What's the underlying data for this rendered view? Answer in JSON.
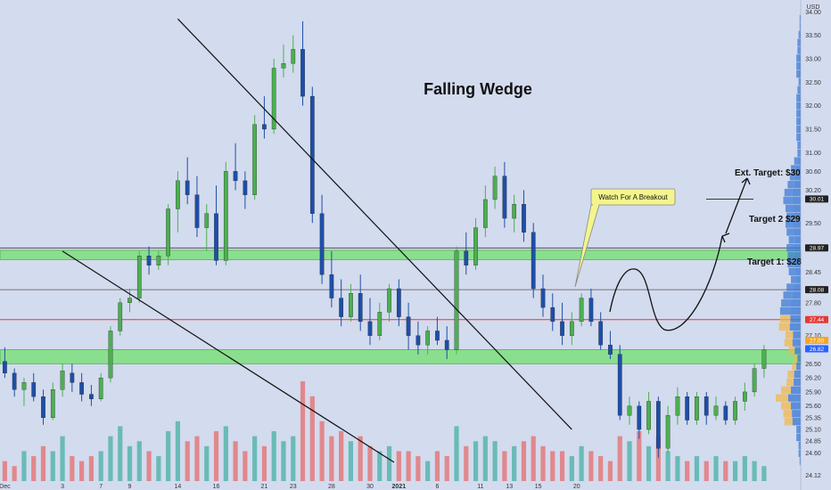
{
  "chart_data": {
    "type": "candlestick",
    "title": "Falling Wedge",
    "currency": "USD",
    "ylim": [
      24.0,
      34.1
    ],
    "y_ticks": [
      "24.12",
      "24.60",
      "24.85",
      "25.10",
      "25.35",
      "25.60",
      "25.90",
      "26.20",
      "26.50",
      "26.80",
      "27.10",
      "27.44",
      "27.80",
      "28.08",
      "28.45",
      "28.97",
      "29.50",
      "30.01",
      "30.20",
      "30.60",
      "31.00",
      "31.50",
      "32.00",
      "32.50",
      "33.00",
      "33.50",
      "34.00"
    ],
    "x_ticks": [
      "Dec",
      "3",
      "7",
      "9",
      "14",
      "16",
      "21",
      "23",
      "28",
      "30",
      "2021",
      "6",
      "11",
      "13",
      "15",
      "20"
    ],
    "x_tick_values": [
      0.5,
      6.5,
      10.5,
      13.5,
      18.5,
      22.5,
      27.5,
      30.5,
      34.5,
      38.5,
      41.5,
      45.5,
      50,
      53,
      56,
      60
    ],
    "xlim": [
      0,
      64.2
    ],
    "candles": [
      {
        "o": 26.55,
        "h": 26.85,
        "l": 26.2,
        "c": 26.3
      },
      {
        "o": 26.3,
        "h": 26.4,
        "l": 25.8,
        "c": 25.95
      },
      {
        "o": 25.95,
        "h": 26.2,
        "l": 25.6,
        "c": 26.1
      },
      {
        "o": 26.1,
        "h": 26.3,
        "l": 25.7,
        "c": 25.8
      },
      {
        "o": 25.8,
        "h": 25.95,
        "l": 25.2,
        "c": 25.35
      },
      {
        "o": 25.35,
        "h": 26.1,
        "l": 25.3,
        "c": 25.95
      },
      {
        "o": 25.95,
        "h": 26.5,
        "l": 25.8,
        "c": 26.35
      },
      {
        "o": 26.3,
        "h": 26.5,
        "l": 25.9,
        "c": 26.1
      },
      {
        "o": 26.1,
        "h": 26.3,
        "l": 25.7,
        "c": 25.85
      },
      {
        "o": 25.85,
        "h": 26.05,
        "l": 25.6,
        "c": 25.75
      },
      {
        "o": 25.75,
        "h": 26.3,
        "l": 25.7,
        "c": 26.2
      },
      {
        "o": 26.2,
        "h": 27.3,
        "l": 26.1,
        "c": 27.2
      },
      {
        "o": 27.2,
        "h": 27.9,
        "l": 27.1,
        "c": 27.8
      },
      {
        "o": 27.8,
        "h": 28.1,
        "l": 27.6,
        "c": 27.9
      },
      {
        "o": 27.9,
        "h": 28.9,
        "l": 27.8,
        "c": 28.8
      },
      {
        "o": 28.8,
        "h": 29.0,
        "l": 28.4,
        "c": 28.6
      },
      {
        "o": 28.6,
        "h": 28.9,
        "l": 28.5,
        "c": 28.8
      },
      {
        "o": 28.8,
        "h": 29.9,
        "l": 28.6,
        "c": 29.8
      },
      {
        "o": 29.8,
        "h": 30.6,
        "l": 29.3,
        "c": 30.4
      },
      {
        "o": 30.4,
        "h": 30.9,
        "l": 29.9,
        "c": 30.1
      },
      {
        "o": 30.1,
        "h": 30.5,
        "l": 29.2,
        "c": 29.4
      },
      {
        "o": 29.4,
        "h": 29.9,
        "l": 28.9,
        "c": 29.7
      },
      {
        "o": 29.7,
        "h": 30.3,
        "l": 28.6,
        "c": 28.7
      },
      {
        "o": 28.7,
        "h": 30.8,
        "l": 28.6,
        "c": 30.6
      },
      {
        "o": 30.6,
        "h": 31.2,
        "l": 30.2,
        "c": 30.4
      },
      {
        "o": 30.4,
        "h": 30.6,
        "l": 29.8,
        "c": 30.1
      },
      {
        "o": 30.1,
        "h": 31.8,
        "l": 30.0,
        "c": 31.6
      },
      {
        "o": 31.6,
        "h": 32.2,
        "l": 31.3,
        "c": 31.5
      },
      {
        "o": 31.5,
        "h": 33.0,
        "l": 31.4,
        "c": 32.8
      },
      {
        "o": 32.8,
        "h": 33.3,
        "l": 32.6,
        "c": 32.9
      },
      {
        "o": 32.9,
        "h": 33.5,
        "l": 32.7,
        "c": 33.2
      },
      {
        "o": 33.2,
        "h": 33.8,
        "l": 32.0,
        "c": 32.2
      },
      {
        "o": 32.2,
        "h": 32.4,
        "l": 29.5,
        "c": 29.7
      },
      {
        "o": 29.7,
        "h": 30.1,
        "l": 28.2,
        "c": 28.4
      },
      {
        "o": 28.4,
        "h": 28.9,
        "l": 27.7,
        "c": 27.9
      },
      {
        "o": 27.9,
        "h": 28.3,
        "l": 27.3,
        "c": 27.5
      },
      {
        "o": 27.5,
        "h": 28.2,
        "l": 27.4,
        "c": 28.0
      },
      {
        "o": 28.0,
        "h": 28.4,
        "l": 27.2,
        "c": 27.4
      },
      {
        "o": 27.4,
        "h": 27.9,
        "l": 26.9,
        "c": 27.1
      },
      {
        "o": 27.1,
        "h": 27.8,
        "l": 27.0,
        "c": 27.6
      },
      {
        "o": 27.6,
        "h": 28.2,
        "l": 27.4,
        "c": 28.1
      },
      {
        "o": 28.1,
        "h": 28.3,
        "l": 27.3,
        "c": 27.5
      },
      {
        "o": 27.5,
        "h": 27.8,
        "l": 26.8,
        "c": 27.1
      },
      {
        "o": 27.1,
        "h": 27.4,
        "l": 26.7,
        "c": 26.9
      },
      {
        "o": 26.9,
        "h": 27.3,
        "l": 26.7,
        "c": 27.2
      },
      {
        "o": 27.2,
        "h": 27.5,
        "l": 26.9,
        "c": 27.0
      },
      {
        "o": 27.0,
        "h": 27.3,
        "l": 26.6,
        "c": 26.8
      },
      {
        "o": 26.8,
        "h": 29.0,
        "l": 26.7,
        "c": 28.9
      },
      {
        "o": 28.9,
        "h": 29.3,
        "l": 28.4,
        "c": 28.6
      },
      {
        "o": 28.6,
        "h": 29.6,
        "l": 28.5,
        "c": 29.4
      },
      {
        "o": 29.4,
        "h": 30.3,
        "l": 29.2,
        "c": 30.0
      },
      {
        "o": 30.0,
        "h": 30.7,
        "l": 29.8,
        "c": 30.5
      },
      {
        "o": 30.5,
        "h": 30.8,
        "l": 29.4,
        "c": 29.6
      },
      {
        "o": 29.6,
        "h": 30.1,
        "l": 29.3,
        "c": 29.9
      },
      {
        "o": 29.9,
        "h": 30.2,
        "l": 29.1,
        "c": 29.3
      },
      {
        "o": 29.3,
        "h": 29.5,
        "l": 27.9,
        "c": 28.1
      },
      {
        "o": 28.1,
        "h": 28.4,
        "l": 27.5,
        "c": 27.7
      },
      {
        "o": 27.7,
        "h": 28.0,
        "l": 27.2,
        "c": 27.4
      },
      {
        "o": 27.4,
        "h": 27.8,
        "l": 26.9,
        "c": 27.1
      },
      {
        "o": 27.1,
        "h": 27.6,
        "l": 26.9,
        "c": 27.4
      },
      {
        "o": 27.4,
        "h": 28.0,
        "l": 27.3,
        "c": 27.9
      },
      {
        "o": 27.9,
        "h": 28.1,
        "l": 27.3,
        "c": 27.4
      },
      {
        "o": 27.4,
        "h": 27.6,
        "l": 26.8,
        "c": 26.9
      },
      {
        "o": 26.9,
        "h": 27.2,
        "l": 26.6,
        "c": 26.7
      },
      {
        "o": 26.7,
        "h": 26.9,
        "l": 25.3,
        "c": 25.4
      },
      {
        "o": 25.4,
        "h": 25.8,
        "l": 25.2,
        "c": 25.6
      },
      {
        "o": 25.6,
        "h": 25.7,
        "l": 24.9,
        "c": 25.1
      },
      {
        "o": 25.1,
        "h": 25.9,
        "l": 25.0,
        "c": 25.7
      },
      {
        "o": 25.7,
        "h": 25.8,
        "l": 24.5,
        "c": 24.7
      },
      {
        "o": 24.7,
        "h": 25.6,
        "l": 24.6,
        "c": 25.4
      },
      {
        "o": 25.4,
        "h": 26.0,
        "l": 25.2,
        "c": 25.8
      },
      {
        "o": 25.8,
        "h": 25.9,
        "l": 25.2,
        "c": 25.3
      },
      {
        "o": 25.3,
        "h": 25.9,
        "l": 25.2,
        "c": 25.8
      },
      {
        "o": 25.8,
        "h": 25.9,
        "l": 25.2,
        "c": 25.4
      },
      {
        "o": 25.4,
        "h": 25.8,
        "l": 25.3,
        "c": 25.6
      },
      {
        "o": 25.6,
        "h": 25.7,
        "l": 25.2,
        "c": 25.3
      },
      {
        "o": 25.3,
        "h": 25.8,
        "l": 25.2,
        "c": 25.7
      },
      {
        "o": 25.7,
        "h": 26.1,
        "l": 25.5,
        "c": 25.9
      },
      {
        "o": 25.9,
        "h": 26.5,
        "l": 25.8,
        "c": 26.4
      },
      {
        "o": 26.4,
        "h": 26.9,
        "l": 26.2,
        "c": 26.8
      }
    ],
    "volume": [
      0.2,
      0.15,
      0.3,
      0.25,
      0.35,
      0.3,
      0.45,
      0.25,
      0.2,
      0.25,
      0.3,
      0.45,
      0.55,
      0.35,
      0.4,
      0.3,
      0.25,
      0.5,
      0.6,
      0.4,
      0.45,
      0.35,
      0.5,
      0.55,
      0.4,
      0.3,
      0.45,
      0.35,
      0.5,
      0.4,
      0.45,
      1.0,
      0.85,
      0.6,
      0.45,
      0.5,
      0.4,
      0.45,
      0.35,
      0.3,
      0.35,
      0.3,
      0.3,
      0.25,
      0.2,
      0.3,
      0.25,
      0.55,
      0.35,
      0.4,
      0.45,
      0.4,
      0.3,
      0.35,
      0.4,
      0.45,
      0.35,
      0.3,
      0.3,
      0.25,
      0.35,
      0.3,
      0.25,
      0.2,
      0.45,
      0.4,
      0.5,
      0.35,
      0.45,
      0.3,
      0.25,
      0.2,
      0.25,
      0.2,
      0.25,
      0.2,
      0.2,
      0.25,
      0.2,
      0.15
    ],
    "h_lines": [
      {
        "price": 27.44,
        "color": "#e53935"
      },
      {
        "price": 28.08,
        "color": "#555555"
      },
      {
        "price": 28.97,
        "color": "#222222"
      },
      {
        "price": 30.01,
        "color": "#222222"
      }
    ],
    "zones": [
      {
        "from": 28.72,
        "to": 28.92,
        "color": "#7ee07e"
      },
      {
        "from": 26.5,
        "to": 26.8,
        "color": "#7ee07e"
      }
    ],
    "wedge_lines": [
      {
        "p1": [
          18.5,
          33.85
        ],
        "p2": [
          59.5,
          25.1
        ]
      },
      {
        "p1": [
          6.5,
          28.9
        ],
        "p2": [
          41.0,
          24.4
        ]
      }
    ],
    "price_badges": [
      {
        "label": "28.97",
        "price": 28.97,
        "color": "#222222"
      },
      {
        "label": "28.08",
        "price": 28.08,
        "color": "#222222"
      },
      {
        "label": "27.44",
        "price": 27.44,
        "color": "#e53935"
      },
      {
        "label": "27.00",
        "price": 27.0,
        "color": "#f5a623"
      },
      {
        "label": "26.82",
        "price": 26.82,
        "color": "#2962ff"
      },
      {
        "label": "30.01",
        "price": 30.01,
        "color": "#222222"
      }
    ],
    "targets": [
      {
        "label": "Target 1: $28"
      },
      {
        "label": "Target 2 $29"
      },
      {
        "label": "Ext. Target: $30"
      }
    ],
    "callout": "Watch For A Breakout",
    "colors": {
      "up": "#4caf50",
      "down": "#1e4fa8",
      "bg": "#d3dbee",
      "vol_up": "#4fb3a9",
      "vol_down": "#e57373"
    }
  }
}
